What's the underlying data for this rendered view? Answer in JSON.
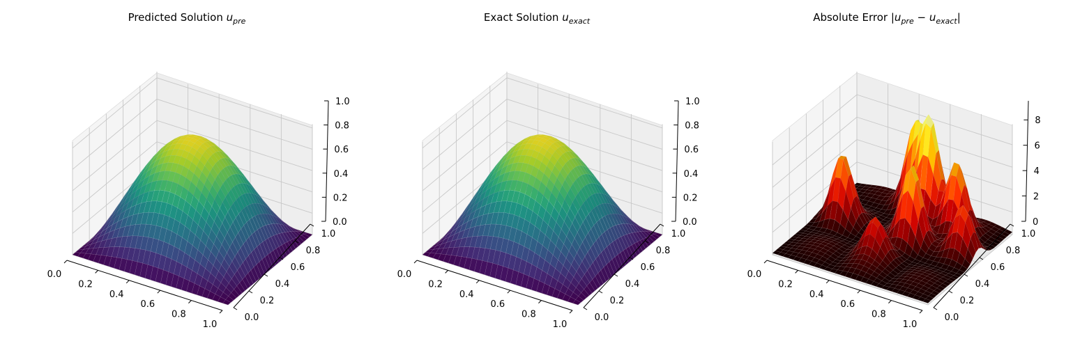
{
  "chart_data": [
    {
      "type": "surface3d",
      "title": "Predicted Solution ",
      "title_symbol": "u",
      "title_subscript": "pre",
      "colormap": "viridis",
      "function": "sin(pi*x)*sin(pi*y)",
      "grid_resolution": 30,
      "x_ticks": [
        "0.0",
        "0.2",
        "0.4",
        "0.6",
        "0.8",
        "1.0"
      ],
      "y_ticks": [
        "0.0",
        "0.2",
        "0.4",
        "0.6",
        "0.8",
        "1.0"
      ],
      "z_ticks": [
        "0.0",
        "0.2",
        "0.4",
        "0.6",
        "0.8",
        "1.0"
      ],
      "xlim": [
        0,
        1
      ],
      "ylim": [
        0,
        1
      ],
      "zlim": [
        0,
        1
      ],
      "peak": {
        "x": 0.5,
        "y": 0.5,
        "z": 1.0
      },
      "grid": true
    },
    {
      "type": "surface3d",
      "title": "Exact Solution ",
      "title_symbol": "u",
      "title_subscript": "exact",
      "colormap": "viridis",
      "function": "sin(pi*x)*sin(pi*y)",
      "grid_resolution": 30,
      "x_ticks": [
        "0.0",
        "0.2",
        "0.4",
        "0.6",
        "0.8",
        "1.0"
      ],
      "y_ticks": [
        "0.0",
        "0.2",
        "0.4",
        "0.6",
        "0.8",
        "1.0"
      ],
      "z_ticks": [
        "0.0",
        "0.2",
        "0.4",
        "0.6",
        "0.8",
        "1.0"
      ],
      "xlim": [
        0,
        1
      ],
      "ylim": [
        0,
        1
      ],
      "zlim": [
        0,
        1
      ],
      "peak": {
        "x": 0.5,
        "y": 0.5,
        "z": 1.0
      },
      "grid": true
    },
    {
      "type": "surface3d",
      "title": "Absolute Error |",
      "title_symbol": "u",
      "title_subscript": "pre",
      "title_middle": " − ",
      "title_symbol2": "u",
      "title_subscript2": "exact",
      "title_end": "|",
      "colormap": "hot",
      "function": "absolute error (multi-peak, approx.)",
      "grid_resolution": 30,
      "x_ticks": [
        "0.0",
        "0.2",
        "0.4",
        "0.6",
        "0.8",
        "1.0"
      ],
      "y_ticks": [
        "0.0",
        "0.2",
        "0.4",
        "0.6",
        "0.8",
        "1.0"
      ],
      "z_ticks": [
        "0",
        "2",
        "4",
        "6",
        "8"
      ],
      "xlim": [
        0,
        1
      ],
      "ylim": [
        0,
        1
      ],
      "zlim": [
        0,
        9.5
      ],
      "peaks": [
        {
          "x": 0.55,
          "y": 0.85,
          "z": 8.6
        },
        {
          "x": 0.42,
          "y": 0.92,
          "z": 7.3
        },
        {
          "x": 0.15,
          "y": 0.55,
          "z": 5.8
        },
        {
          "x": 0.75,
          "y": 0.8,
          "z": 6.5
        },
        {
          "x": 0.6,
          "y": 0.55,
          "z": 6.6
        },
        {
          "x": 0.9,
          "y": 0.6,
          "z": 4.2
        },
        {
          "x": 0.5,
          "y": 0.3,
          "z": 3.0
        }
      ],
      "grid": true
    }
  ]
}
